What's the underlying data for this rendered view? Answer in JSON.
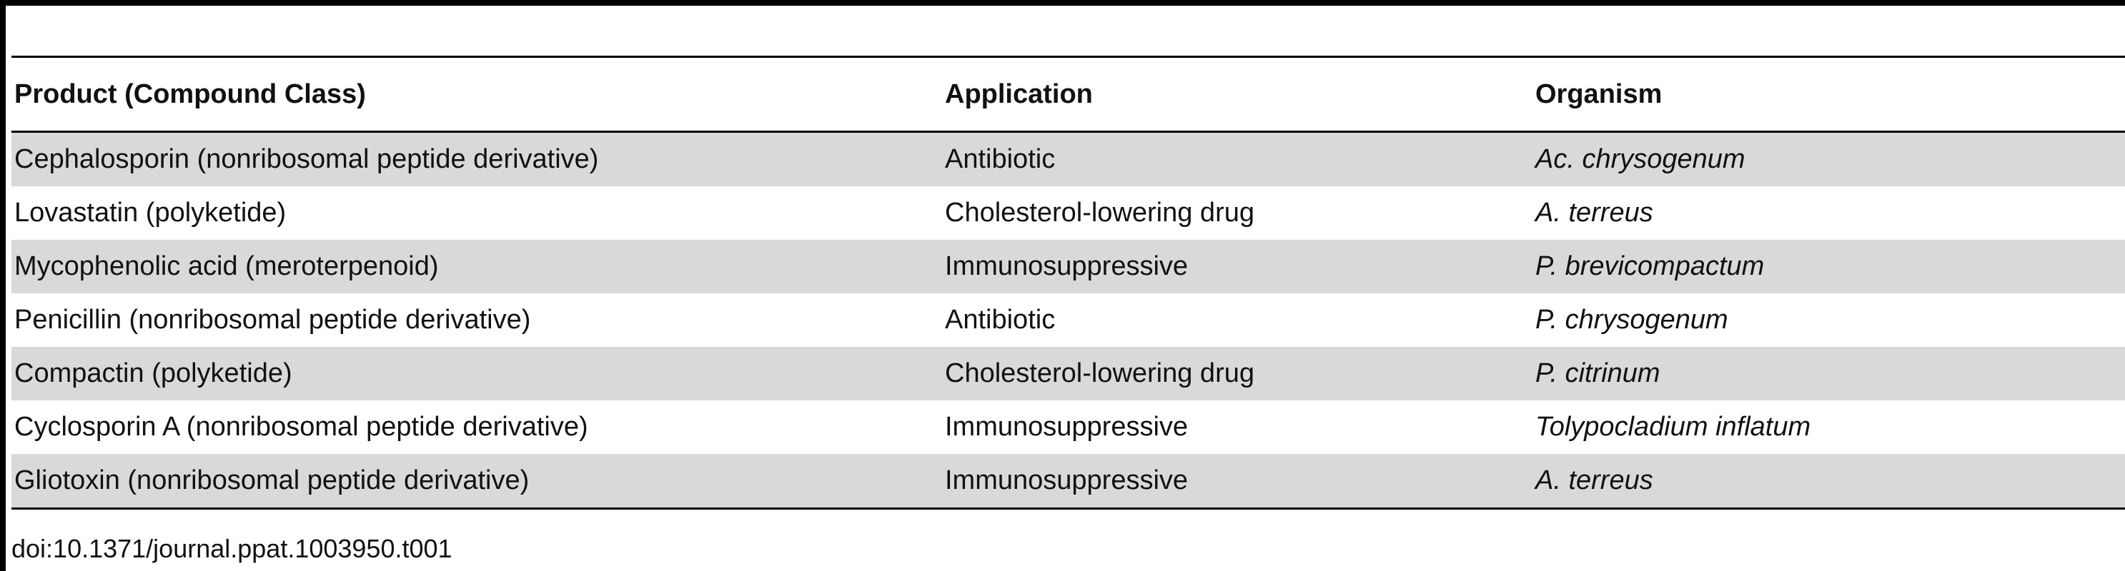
{
  "table": {
    "headers": [
      "Product (Compound Class)",
      "Application",
      "Organism"
    ],
    "rows": [
      [
        "Cephalosporin (nonribosomal peptide derivative)",
        "Antibiotic",
        "Ac. chrysogenum"
      ],
      [
        "Lovastatin (polyketide)",
        "Cholesterol-lowering drug",
        "A. terreus"
      ],
      [
        "Mycophenolic acid (meroterpenoid)",
        "Immunosuppressive",
        "P. brevicompactum"
      ],
      [
        "Penicillin (nonribosomal peptide derivative)",
        "Antibiotic",
        "P. chrysogenum"
      ],
      [
        "Compactin (polyketide)",
        "Cholesterol-lowering drug",
        "P. citrinum"
      ],
      [
        "Cyclosporin A (nonribosomal peptide derivative)",
        "Immunosuppressive",
        "Tolypocladium inflatum"
      ],
      [
        "Gliotoxin (nonribosomal peptide derivative)",
        "Immunosuppressive",
        "A. terreus"
      ]
    ]
  },
  "footer": {
    "doi": "doi:10.1371/journal.ppat.1003950.t001"
  },
  "colors": {
    "stripe": "#d9d9d9",
    "rule": "#000000"
  }
}
